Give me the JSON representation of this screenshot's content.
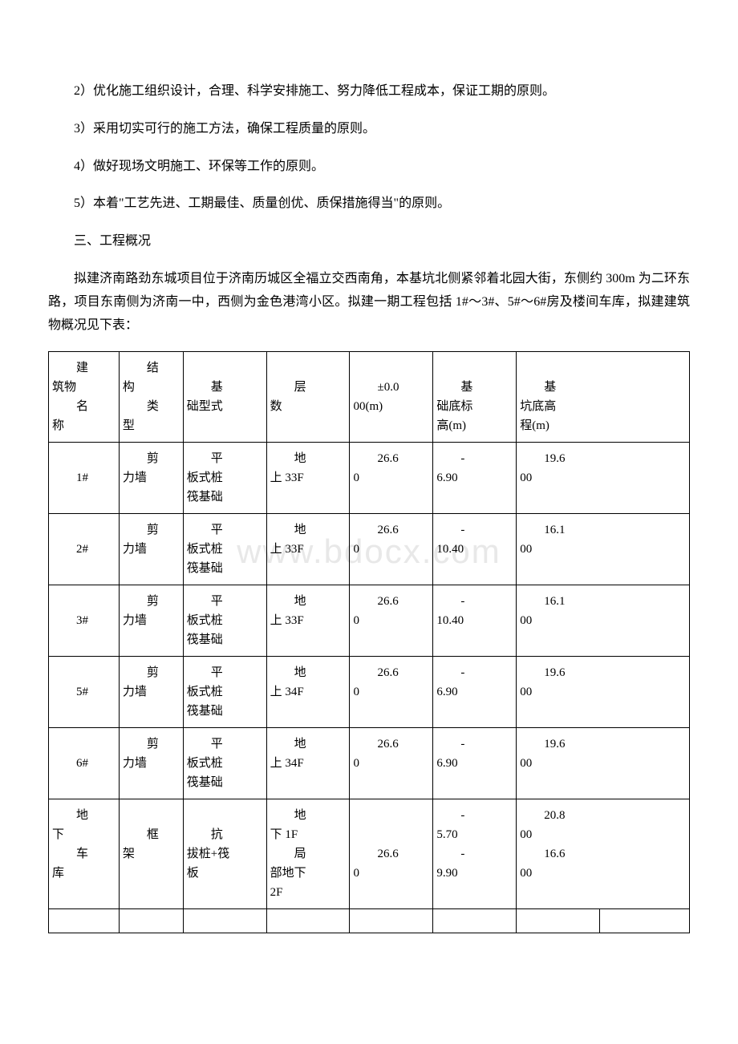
{
  "watermark": "www.bdocx.com",
  "paragraphs": {
    "p1": "2）优化施工组织设计，合理、科学安排施工、努力降低工程成本，保证工期的原则。",
    "p2": "3）采用切实可行的施工方法，确保工程质量的原则。",
    "p3": "4）做好现场文明施工、环保等工作的原则。",
    "p4": "5）本着\"工艺先进、工期最佳、质量创优、质保措施得当\"的原则。",
    "p5": "三、工程概况",
    "p6": "拟建济南路劲东城项目位于济南历城区全福立交西南角，本基坑北侧紧邻着北园大街，东侧约 300m 为二环东路，项目东南侧为济南一中，西侧为金色港湾小区。拟建一期工程包括 1#～3#、5#～6#房及楼间车库，拟建建筑物概况见下表："
  },
  "table": {
    "headers": {
      "h1_line1": "　　建",
      "h1_line2": "筑物",
      "h1_line3": "　　名",
      "h1_line4": "称",
      "h2_line1": "　　结",
      "h2_line2": "构",
      "h2_line3": "　　类",
      "h2_line4": "型",
      "h3_line1": "　　基",
      "h3_line2": "础型式",
      "h4_line1": "　　层",
      "h4_line2": "数",
      "h5_line1": "　　±0.0",
      "h5_line2": "00(m)",
      "h6_line1": "　　基",
      "h6_line2": "础底标",
      "h6_line3": "高(m)",
      "h7_line1": "　　基",
      "h7_line2": "坑底高",
      "h7_line3": "程(m)"
    },
    "rows": [
      {
        "c1": "　　1#",
        "c2_l1": "　　剪",
        "c2_l2": "力墙",
        "c3_l1": "　　平",
        "c3_l2": "板式桩",
        "c3_l3": "筏基础",
        "c4_l1": "　　地",
        "c4_l2": "上 33F",
        "c5_l1": "　　26.6",
        "c5_l2": "0",
        "c6_l1": "　　-",
        "c6_l2": "6.90",
        "c7_l1": "　　19.6",
        "c7_l2": "00"
      },
      {
        "c1": "　　2#",
        "c2_l1": "　　剪",
        "c2_l2": "力墙",
        "c3_l1": "　　平",
        "c3_l2": "板式桩",
        "c3_l3": "筏基础",
        "c4_l1": "　　地",
        "c4_l2": "上 33F",
        "c5_l1": "　　26.6",
        "c5_l2": "0",
        "c6_l1": "　　-",
        "c6_l2": "10.40",
        "c7_l1": "　　16.1",
        "c7_l2": "00"
      },
      {
        "c1": "　　3#",
        "c2_l1": "　　剪",
        "c2_l2": "力墙",
        "c3_l1": "　　平",
        "c3_l2": "板式桩",
        "c3_l3": "筏基础",
        "c4_l1": "　　地",
        "c4_l2": "上 33F",
        "c5_l1": "　　26.6",
        "c5_l2": "0",
        "c6_l1": "　　-",
        "c6_l2": "10.40",
        "c7_l1": "　　16.1",
        "c7_l2": "00"
      },
      {
        "c1": "　　5#",
        "c2_l1": "　　剪",
        "c2_l2": "力墙",
        "c3_l1": "　　平",
        "c3_l2": "板式桩",
        "c3_l3": "筏基础",
        "c4_l1": "　　地",
        "c4_l2": "上 34F",
        "c5_l1": "　　26.6",
        "c5_l2": "0",
        "c6_l1": "　　-",
        "c6_l2": "6.90",
        "c7_l1": "　　19.6",
        "c7_l2": "00"
      },
      {
        "c1": "　　6#",
        "c2_l1": "　　剪",
        "c2_l2": "力墙",
        "c3_l1": "　　平",
        "c3_l2": "板式桩",
        "c3_l3": "筏基础",
        "c4_l1": "　　地",
        "c4_l2": "上 34F",
        "c5_l1": "　　26.6",
        "c5_l2": "0",
        "c6_l1": "　　-",
        "c6_l2": "6.90",
        "c7_l1": "　　19.6",
        "c7_l2": "00"
      }
    ],
    "garage_row": {
      "c1_l1": "　　地",
      "c1_l2": "下",
      "c1_l3": "　　车",
      "c1_l4": "库",
      "c2_l1": "　　框",
      "c2_l2": "架",
      "c3_l1": "　　抗",
      "c3_l2": "拔桩+筏",
      "c3_l3": "板",
      "c4_l1": "　　地",
      "c4_l2": "下 1F",
      "c4_l3": "　　局",
      "c4_l4": "部地下",
      "c4_l5": "2F",
      "c5_l1": "　　26.6",
      "c5_l2": "0",
      "c6_l1": "　　-",
      "c6_l2": "5.70",
      "c6_l3": "　　-",
      "c6_l4": "9.90",
      "c7_l1": "　　20.8",
      "c7_l2": "00",
      "c7_l3": "　　16.6",
      "c7_l4": "00"
    }
  }
}
